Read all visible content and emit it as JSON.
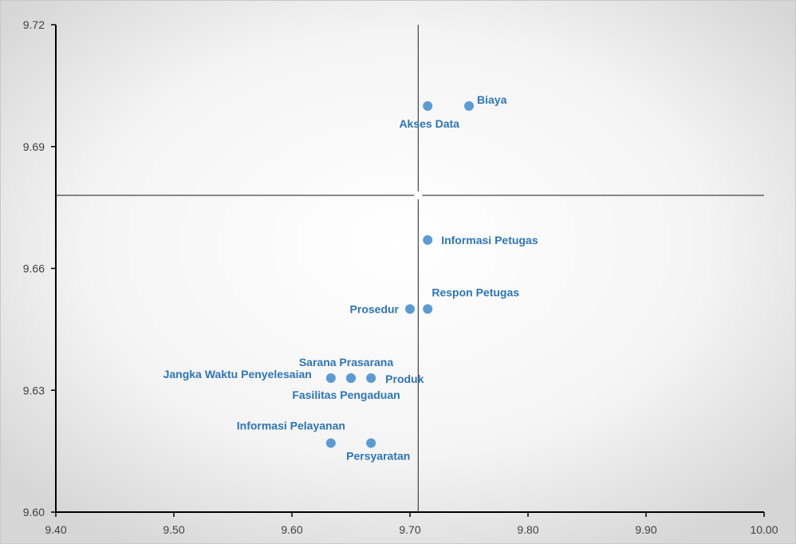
{
  "chart_data": {
    "type": "scatter",
    "title": "",
    "xlabel": "",
    "ylabel": "",
    "xlim": [
      9.4,
      10.0
    ],
    "ylim": [
      9.6,
      9.72
    ],
    "xticks": [
      "9.40",
      "9.50",
      "9.60",
      "9.70",
      "9.80",
      "9.90",
      "10.00"
    ],
    "yticks": [
      "9.72",
      "9.69",
      "9.66",
      "9.63",
      "9.60"
    ],
    "grid": false,
    "quadrant_lines": {
      "x": 9.707,
      "y": 9.678
    },
    "point_color": "#5b9bd5",
    "label_color": "#2e75b6",
    "points": [
      {
        "label": "Biaya",
        "x": 9.75,
        "y": 9.7
      },
      {
        "label": "Akses Data",
        "x": 9.715,
        "y": 9.7
      },
      {
        "label": "Informasi Petugas",
        "x": 9.715,
        "y": 9.667
      },
      {
        "label": "Respon Petugas",
        "x": 9.715,
        "y": 9.65
      },
      {
        "label": "Prosedur",
        "x": 9.7,
        "y": 9.65
      },
      {
        "label": "Sarana Prasarana",
        "x": 9.65,
        "y": 9.633
      },
      {
        "label": "Jangka Waktu Penyelesaian",
        "x": 9.633,
        "y": 9.633
      },
      {
        "label": "Produk",
        "x": 9.667,
        "y": 9.633
      },
      {
        "label": "Fasilitas Pengaduan",
        "x": 9.65,
        "y": 9.633
      },
      {
        "label": "Informasi Pelayanan",
        "x": 9.633,
        "y": 9.617
      },
      {
        "label": "Persyaratan",
        "x": 9.667,
        "y": 9.617
      }
    ]
  }
}
